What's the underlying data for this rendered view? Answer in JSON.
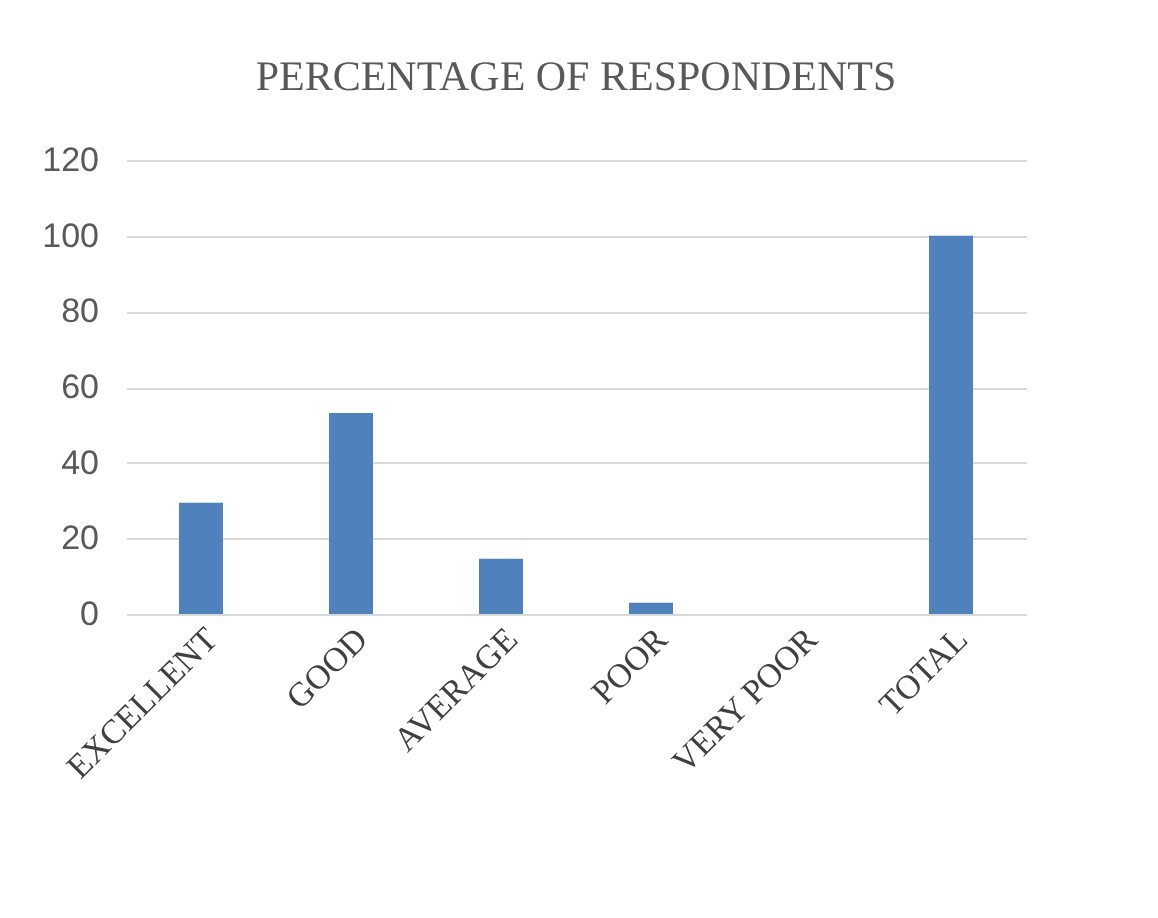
{
  "chart_data": {
    "type": "bar",
    "title": "PERCENTAGE OF RESPONDENTS",
    "categories": [
      "EXCELLENT",
      "GOOD",
      "AVERAGE",
      "POOR",
      "VERY POOR",
      "TOTAL"
    ],
    "values": [
      29.4,
      53.1,
      14.6,
      3,
      0,
      100
    ],
    "color": "#4f81bd",
    "ylim": [
      0,
      120
    ],
    "yticks": [
      0,
      20,
      40,
      60,
      80,
      100,
      120
    ],
    "grid": "y"
  }
}
